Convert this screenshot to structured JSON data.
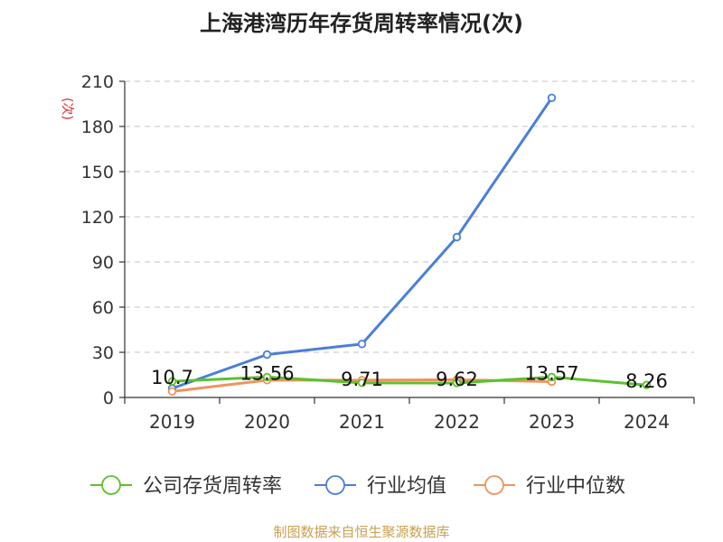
{
  "chart_data": {
    "type": "line",
    "title": "上海港湾历年存货周转率情况(次)",
    "ylabel": "(次)",
    "xlabel": "",
    "categories": [
      "2019",
      "2020",
      "2021",
      "2022",
      "2023",
      "2024"
    ],
    "y_ticks": [
      0,
      30,
      60,
      90,
      120,
      150,
      180,
      210
    ],
    "ylim": [
      0,
      210
    ],
    "grid": true,
    "legend_position": "bottom",
    "series": [
      {
        "name": "公司存货周转率",
        "color": "#5dc12e",
        "values": [
          10.7,
          13.56,
          9.71,
          9.62,
          13.57,
          8.26
        ],
        "labels": [
          "10.7",
          "13.56",
          "9.71",
          "9.62",
          "13.57",
          "8.26"
        ]
      },
      {
        "name": "行业均值",
        "color": "#4a7fd8",
        "values": [
          6,
          28.5,
          35.5,
          106.5,
          199,
          null
        ]
      },
      {
        "name": "行业中位数",
        "color": "#f0925e",
        "values": [
          4,
          11.5,
          11.5,
          11.8,
          10.5,
          null
        ]
      }
    ],
    "source": "制图数据来自恒生聚源数据库"
  }
}
